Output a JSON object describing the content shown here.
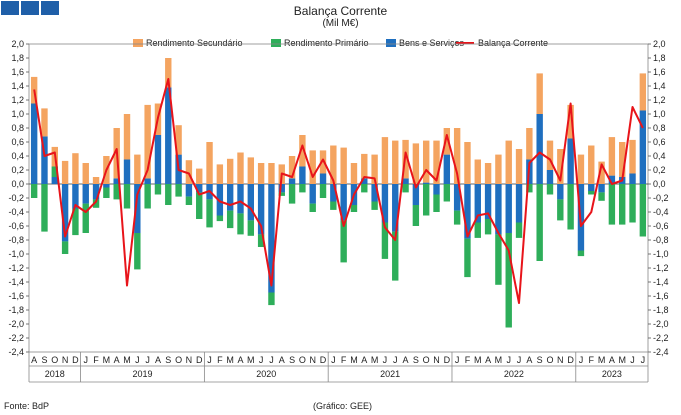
{
  "header": {
    "title": "Balança Corrente",
    "subtitle": "(Mil M€)"
  },
  "legend": {
    "items": [
      {
        "label": "Rendimento Secundário",
        "color": "#f4a460",
        "kind": "bar"
      },
      {
        "label": "Rendimento Primário",
        "color": "#2eae5a",
        "kind": "bar"
      },
      {
        "label": "Bens e Serviços",
        "color": "#1f6fbf",
        "kind": "bar"
      },
      {
        "label": "Balança Corrente",
        "color": "#e8141a",
        "kind": "line"
      }
    ]
  },
  "footer": {
    "source": "Fonte: BdP",
    "credit": "(Gráfico: GEE)"
  },
  "chart_data": {
    "type": "bar",
    "stacked": true,
    "title": "Balança Corrente",
    "subtitle": "(Mil M€)",
    "ylim": [
      -2.4,
      2.0
    ],
    "ytick_step": 0.2,
    "yticks": [
      "2,0",
      "1,8",
      "1,6",
      "1,4",
      "1,2",
      "1,0",
      "0,8",
      "0,6",
      "0,4",
      "0,2",
      "0,0",
      "-0,2",
      "-0,4",
      "-0,6",
      "-0,8",
      "-1,0",
      "-1,2",
      "-1,4",
      "-1,6",
      "-1,8",
      "-2,0",
      "-2,2",
      "-2,4"
    ],
    "categories": [
      "A",
      "S",
      "O",
      "N",
      "D",
      "J",
      "F",
      "M",
      "A",
      "M",
      "J",
      "J",
      "A",
      "S",
      "O",
      "N",
      "D",
      "J",
      "F",
      "M",
      "A",
      "M",
      "J",
      "J",
      "A",
      "S",
      "O",
      "N",
      "D",
      "J",
      "F",
      "M",
      "A",
      "M",
      "J",
      "J",
      "A",
      "S",
      "O",
      "N",
      "D",
      "J",
      "F",
      "M",
      "A",
      "M",
      "J",
      "J",
      "A",
      "S",
      "O",
      "N",
      "D",
      "J",
      "F",
      "M",
      "A",
      "M",
      "J",
      "J"
    ],
    "years": [
      {
        "label": "2018",
        "start": 0,
        "end": 4
      },
      {
        "label": "2019",
        "start": 5,
        "end": 16
      },
      {
        "label": "2020",
        "start": 17,
        "end": 28
      },
      {
        "label": "2021",
        "start": 29,
        "end": 40
      },
      {
        "label": "2022",
        "start": 41,
        "end": 52
      },
      {
        "label": "2023",
        "start": 53,
        "end": 59
      }
    ],
    "series": [
      {
        "name": "Bens e Serviços",
        "color": "#1f6fbf",
        "values": [
          1.15,
          0.68,
          0.1,
          -0.82,
          -0.35,
          -0.28,
          -0.22,
          -0.05,
          0.08,
          0.35,
          -0.7,
          0.08,
          0.7,
          1.38,
          0.42,
          -0.18,
          -0.12,
          -0.22,
          -0.45,
          -0.38,
          -0.42,
          -0.52,
          -0.72,
          -1.55,
          -0.12,
          0.08,
          0.25,
          -0.28,
          0.15,
          -0.25,
          -0.52,
          -0.3,
          0.08,
          -0.25,
          -0.55,
          -0.68,
          0.08,
          -0.3,
          0.02,
          -0.15,
          0.42,
          -0.38,
          -0.78,
          -0.55,
          -0.5,
          -0.72,
          -0.7,
          -0.55,
          0.35,
          1.0,
          0.2,
          -0.22,
          0.65,
          -0.95,
          -0.1,
          -0.12,
          0.12,
          0.1,
          0.15,
          1.05
        ]
      },
      {
        "name": "Rendimento Primário",
        "color": "#2eae5a",
        "values": [
          -0.2,
          -0.68,
          0.15,
          -0.18,
          -0.38,
          -0.42,
          -0.12,
          -0.15,
          -0.22,
          -0.35,
          -0.52,
          -0.35,
          -0.15,
          -0.3,
          -0.18,
          -0.12,
          -0.38,
          -0.4,
          -0.08,
          -0.25,
          -0.3,
          -0.22,
          -0.18,
          -0.18,
          -0.05,
          -0.28,
          -0.12,
          -0.12,
          -0.2,
          -0.12,
          -0.6,
          -0.1,
          -0.12,
          -0.12,
          -0.52,
          -0.7,
          -0.12,
          -0.3,
          -0.45,
          -0.25,
          -0.25,
          -0.2,
          -0.55,
          -0.22,
          -0.22,
          -0.72,
          -1.35,
          -0.22,
          -0.12,
          -1.1,
          -0.15,
          -0.3,
          -0.65,
          -0.08,
          -0.05,
          -0.12,
          -0.58,
          -0.58,
          -0.55,
          -0.75
        ]
      },
      {
        "name": "Rendimento Secundário",
        "color": "#f4a460",
        "values": [
          0.38,
          0.4,
          0.28,
          0.33,
          0.44,
          0.3,
          0.1,
          0.4,
          0.72,
          0.65,
          0.42,
          1.05,
          0.45,
          0.42,
          0.42,
          0.34,
          0.22,
          0.6,
          0.28,
          0.36,
          0.45,
          0.38,
          0.3,
          0.3,
          0.28,
          0.32,
          0.45,
          0.48,
          0.33,
          0.55,
          0.52,
          0.3,
          0.35,
          0.42,
          0.67,
          0.62,
          0.55,
          0.58,
          0.6,
          0.62,
          0.38,
          0.8,
          0.6,
          0.35,
          0.3,
          0.42,
          0.62,
          0.5,
          0.45,
          0.58,
          0.42,
          0.5,
          0.48,
          0.42,
          0.55,
          0.32,
          0.55,
          0.5,
          0.48,
          0.53
        ]
      },
      {
        "name": "Balança Corrente",
        "color": "#e8141a",
        "kind": "line",
        "values": [
          1.35,
          0.4,
          0.45,
          -0.75,
          -0.3,
          -0.4,
          -0.25,
          0.2,
          0.5,
          -1.45,
          -0.15,
          0.2,
          0.95,
          1.5,
          0.2,
          0.15,
          -0.15,
          -0.1,
          -0.25,
          -0.3,
          -0.25,
          -0.35,
          -0.6,
          -1.45,
          0.15,
          0.1,
          0.55,
          0.1,
          0.35,
          0.05,
          -0.6,
          -0.15,
          0.1,
          0.08,
          -0.62,
          -0.8,
          0.45,
          -0.05,
          0.2,
          0.05,
          0.7,
          0.15,
          -0.75,
          -0.45,
          -0.42,
          -0.7,
          -0.95,
          -1.7,
          0.3,
          0.45,
          0.35,
          0.05,
          1.15,
          -0.6,
          -0.4,
          0.28,
          0.0,
          0.05,
          1.1,
          0.8
        ]
      }
    ]
  }
}
